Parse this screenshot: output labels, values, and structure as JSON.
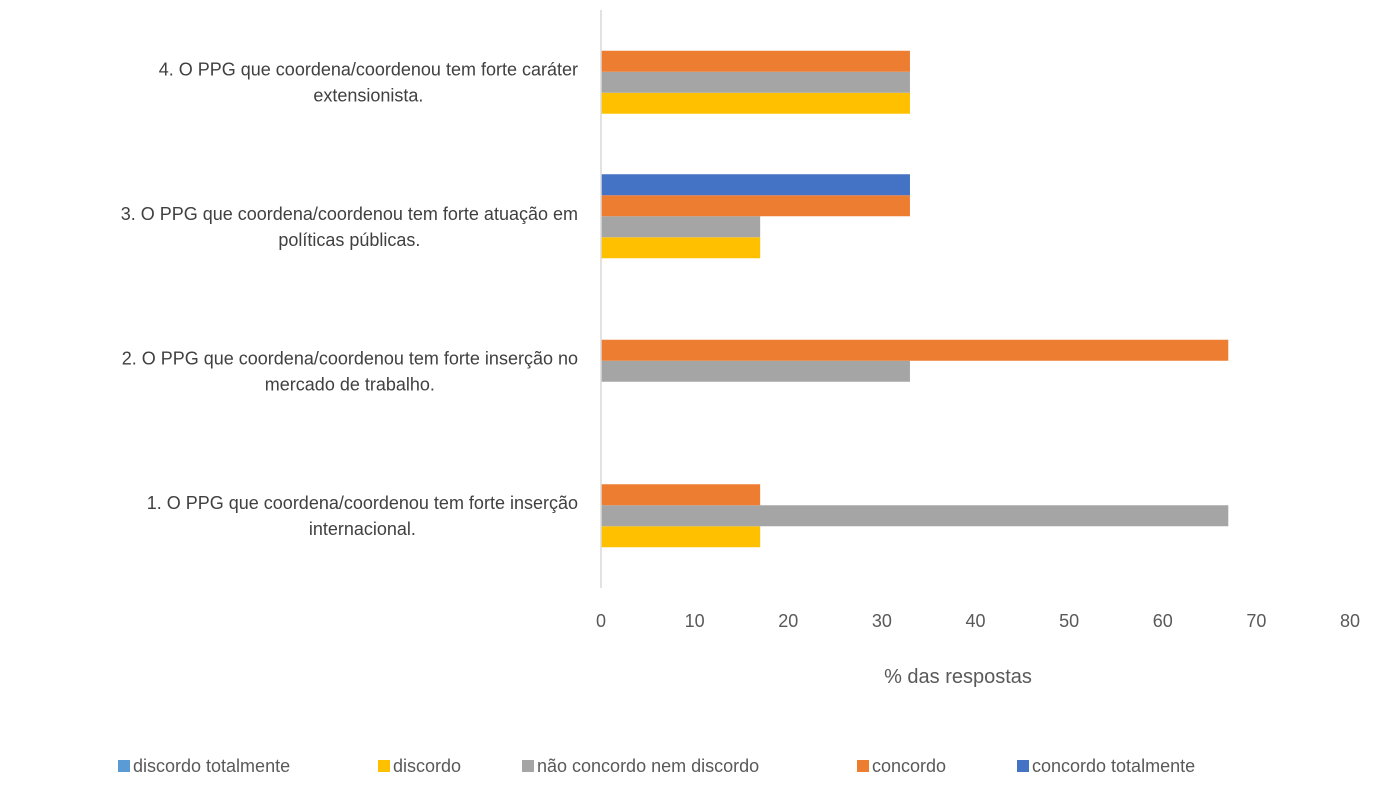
{
  "chart_data": {
    "type": "bar",
    "orientation": "horizontal",
    "categories": [
      [
        "1. O PPG que coordena/coordenou tem forte inserção",
        "internacional."
      ],
      [
        "2. O PPG que coordena/coordenou tem forte inserção no",
        "mercado de trabalho."
      ],
      [
        "3. O PPG que coordena/coordenou tem forte atuação em",
        "políticas públicas."
      ],
      [
        "4. O PPG que coordena/coordenou tem forte caráter",
        "extensionista."
      ]
    ],
    "series": [
      {
        "name": "discordo totalmente",
        "color": "#5B9BD5",
        "values": [
          0,
          0,
          0,
          0
        ]
      },
      {
        "name": "discordo",
        "color": "#FFC000",
        "values": [
          17,
          0,
          17,
          33
        ]
      },
      {
        "name": "não concordo nem discordo",
        "color": "#A5A5A5",
        "values": [
          67,
          33,
          17,
          33
        ]
      },
      {
        "name": "concordo",
        "color": "#ED7D31",
        "values": [
          17,
          67,
          33,
          33
        ]
      },
      {
        "name": "concordo totalmente",
        "color": "#4472C4",
        "values": [
          0,
          0,
          33,
          0
        ]
      }
    ],
    "xlabel": "% das respostas",
    "xlim": [
      0,
      80
    ],
    "xticks": [
      0,
      10,
      20,
      30,
      40,
      50,
      60,
      70,
      80
    ],
    "grid": false,
    "legend_position": "bottom"
  }
}
